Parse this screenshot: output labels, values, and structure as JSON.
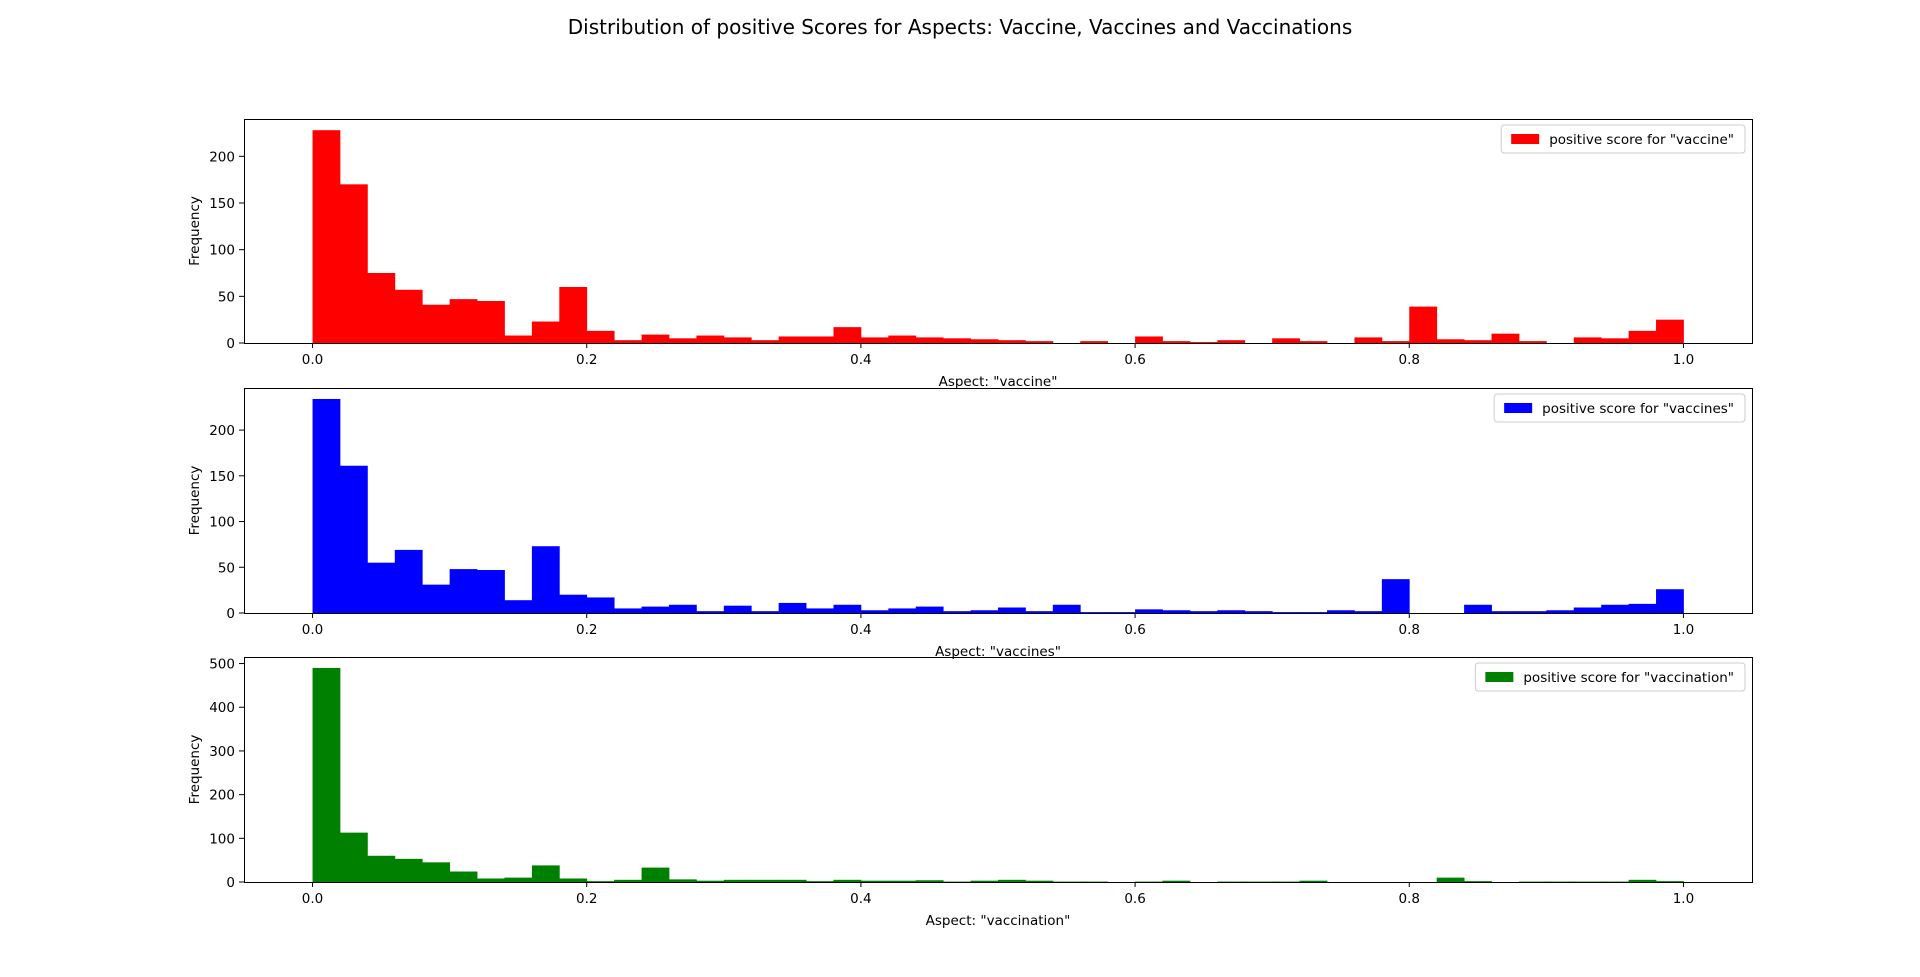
{
  "figure": {
    "title": "Distribution of positive Scores for Aspects: Vaccine, Vaccines and Vaccinations"
  },
  "chart_data": [
    {
      "type": "bar",
      "bin_edges_start": 0.0,
      "bin_width": 0.02,
      "xlim": [
        -0.05,
        1.05
      ],
      "ylim": [
        0,
        240
      ],
      "xticks": [
        0.0,
        0.2,
        0.4,
        0.6,
        0.8,
        1.0
      ],
      "xtick_labels": [
        "0.0",
        "0.2",
        "0.4",
        "0.6",
        "0.8",
        "1.0"
      ],
      "yticks": [
        0,
        50,
        100,
        150,
        200
      ],
      "ytick_labels": [
        "0",
        "50",
        "100",
        "150",
        "200"
      ],
      "xlabel": "Aspect: \"vaccine\"",
      "ylabel": "Frequency",
      "legend_position": "top-right",
      "series": [
        {
          "name": "positive score for \"vaccine\"",
          "color": "#ff0000",
          "values": [
            228,
            170,
            75,
            57,
            41,
            47,
            45,
            8,
            23,
            60,
            13,
            3,
            9,
            5,
            8,
            6,
            3,
            7,
            7,
            17,
            6,
            8,
            6,
            5,
            4,
            3,
            2,
            0,
            2,
            0,
            7,
            2,
            1,
            3,
            0,
            5,
            2,
            0,
            6,
            2,
            39,
            4,
            3,
            10,
            2,
            0,
            6,
            5,
            13,
            25
          ]
        }
      ]
    },
    {
      "type": "bar",
      "bin_edges_start": 0.0,
      "bin_width": 0.02,
      "xlim": [
        -0.05,
        1.05
      ],
      "ylim": [
        0,
        246
      ],
      "xticks": [
        0.0,
        0.2,
        0.4,
        0.6,
        0.8,
        1.0
      ],
      "xtick_labels": [
        "0.0",
        "0.2",
        "0.4",
        "0.6",
        "0.8",
        "1.0"
      ],
      "yticks": [
        0,
        50,
        100,
        150,
        200
      ],
      "ytick_labels": [
        "0",
        "50",
        "100",
        "150",
        "200"
      ],
      "xlabel": "Aspect: \"vaccines\"",
      "ylabel": "Frequency",
      "legend_position": "top-right",
      "series": [
        {
          "name": "positive score for \"vaccines\"",
          "color": "#0000ff",
          "values": [
            234,
            161,
            55,
            69,
            31,
            48,
            47,
            14,
            73,
            20,
            17,
            5,
            7,
            9,
            2,
            8,
            2,
            11,
            5,
            9,
            3,
            5,
            7,
            2,
            3,
            6,
            2,
            9,
            1,
            1,
            4,
            3,
            2,
            3,
            2,
            1,
            1,
            3,
            2,
            37,
            0,
            0,
            9,
            2,
            2,
            3,
            6,
            9,
            10,
            26
          ]
        }
      ]
    },
    {
      "type": "bar",
      "bin_edges_start": 0.0,
      "bin_width": 0.02,
      "xlim": [
        -0.05,
        1.05
      ],
      "ylim": [
        0,
        515
      ],
      "xticks": [
        0.0,
        0.2,
        0.4,
        0.6,
        0.8,
        1.0
      ],
      "xtick_labels": [
        "0.0",
        "0.2",
        "0.4",
        "0.6",
        "0.8",
        "1.0"
      ],
      "yticks": [
        0,
        100,
        200,
        300,
        400,
        500
      ],
      "ytick_labels": [
        "0",
        "100",
        "200",
        "300",
        "400",
        "500"
      ],
      "xlabel": "Aspect: \"vaccination\"",
      "ylabel": "Frequency",
      "legend_position": "top-right",
      "series": [
        {
          "name": "positive score for \"vaccination\"",
          "color": "#008000",
          "values": [
            490,
            113,
            60,
            53,
            45,
            24,
            8,
            10,
            38,
            8,
            2,
            5,
            33,
            6,
            3,
            5,
            5,
            5,
            2,
            5,
            3,
            3,
            4,
            1,
            3,
            5,
            3,
            1,
            1,
            0,
            1,
            3,
            0,
            1,
            1,
            1,
            3,
            0,
            0,
            0,
            0,
            10,
            2,
            0,
            1,
            1,
            1,
            1,
            5,
            2
          ]
        }
      ]
    }
  ]
}
